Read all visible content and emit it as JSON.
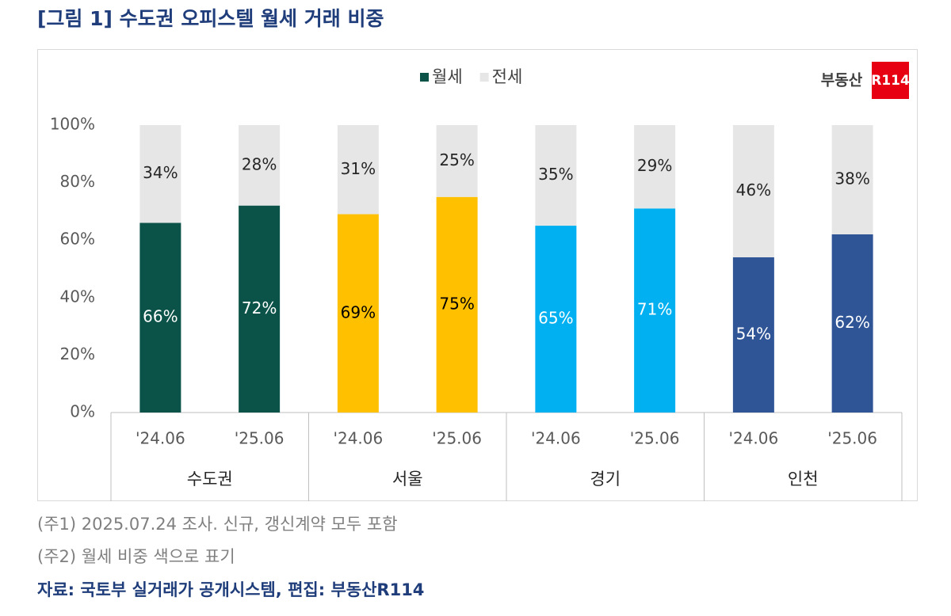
{
  "chart_data": {
    "type": "stacked-bar",
    "title": "[그림 1] 수도권 오피스텔 월세 거래 비중",
    "logo": {
      "text": "부동산",
      "mark": "R114"
    },
    "categories": [
      "'24.06",
      "'25.06",
      "'24.06",
      "'25.06",
      "'24.06",
      "'25.06",
      "'24.06",
      "'25.06"
    ],
    "groups": [
      "수도권",
      "서울",
      "경기",
      "인천"
    ],
    "series": [
      {
        "name": "월세",
        "color": "#0b5348",
        "colors": [
          "#0b5348",
          "#0b5348",
          "#ffc000",
          "#ffc000",
          "#00b0f0",
          "#00b0f0",
          "#2f5597",
          "#2f5597"
        ],
        "label_colors": [
          "#ffffff",
          "#ffffff",
          "#000000",
          "#000000",
          "#ffffff",
          "#ffffff",
          "#ffffff",
          "#ffffff"
        ],
        "values": [
          66,
          72,
          69,
          75,
          65,
          71,
          54,
          62
        ],
        "value_labels": [
          "66%",
          "72%",
          "69%",
          "75%",
          "65%",
          "71%",
          "54%",
          "62%"
        ]
      },
      {
        "name": "전세",
        "color": "#e7e6e6",
        "values": [
          34,
          28,
          31,
          25,
          35,
          29,
          46,
          38
        ],
        "value_labels": [
          "34%",
          "28%",
          "31%",
          "25%",
          "35%",
          "29%",
          "46%",
          "38%"
        ]
      }
    ],
    "ylim": [
      0,
      100
    ],
    "yticks": [
      {
        "value": 0,
        "label": "0%"
      },
      {
        "value": 20,
        "label": "20%"
      },
      {
        "value": 40,
        "label": "40%"
      },
      {
        "value": 60,
        "label": "60%"
      },
      {
        "value": 80,
        "label": "80%"
      },
      {
        "value": 100,
        "label": "100%"
      }
    ],
    "notes": [
      "(주1) 2025.07.24 조사. 신규, 갱신계약 모두 포함",
      "(주2) 월세 비중 색으로 표기"
    ],
    "source": "자료: 국토부 실거래가 공개시스템, 편집: 부동산R114"
  }
}
